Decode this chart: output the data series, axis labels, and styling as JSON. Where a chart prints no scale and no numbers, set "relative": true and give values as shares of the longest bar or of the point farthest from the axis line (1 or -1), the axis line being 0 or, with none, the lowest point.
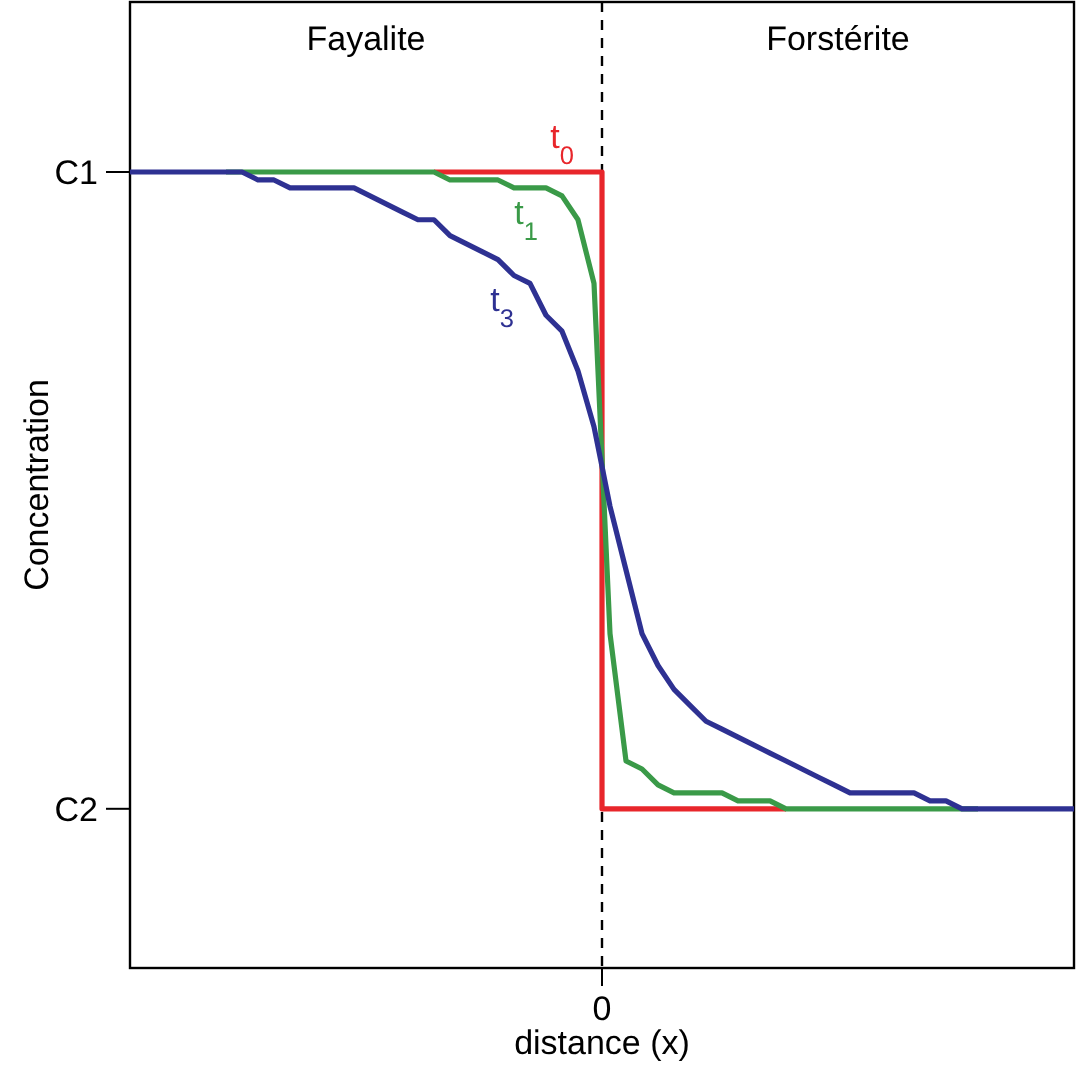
{
  "chart_data": {
    "type": "line",
    "xlabel": "distance (x)",
    "ylabel": "Concentration",
    "relative": true,
    "marker": "none",
    "line_style": "solid",
    "categories": [
      null,
      null,
      null,
      null,
      null,
      null,
      null,
      null,
      null,
      null,
      null,
      null,
      null,
      null,
      null,
      null,
      null,
      null,
      null,
      null,
      null,
      null,
      null,
      null,
      null,
      null,
      null,
      null,
      null,
      null,
      null,
      null,
      null,
      null,
      null,
      null,
      null,
      null,
      null,
      null,
      null,
      null,
      null,
      null,
      null,
      null,
      null,
      null,
      null,
      null,
      null,
      null,
      null,
      null,
      null,
      null,
      null,
      null,
      null,
      null
    ],
    "annotations": [
      "Fayalite",
      "Forstérite",
      "C1",
      "C2",
      "0"
    ],
    "ref_lines": [
      {
        "axis": "x",
        "color": "#000000",
        "line_style": "dashed"
      }
    ],
    "series": [
      {
        "name": "t$_{0}$",
        "type": "step",
        "color": "#e8262b",
        "values": [
          null,
          null,
          null,
          null,
          null,
          null,
          null,
          null,
          null,
          null,
          null,
          null,
          null,
          null,
          null,
          null,
          null,
          null,
          null,
          1,
          1,
          1,
          1,
          1,
          1,
          1,
          1,
          1,
          1,
          1,
          0.2,
          0.2,
          0.2,
          0.2,
          0.2,
          0.2,
          0.2,
          0.2,
          0.2,
          0.2,
          0.2,
          0.2,
          null,
          null,
          null,
          null,
          null,
          null,
          null,
          null,
          null,
          null,
          null,
          null,
          null,
          null,
          null,
          null,
          null,
          null
        ]
      },
      {
        "name": "t$_{1}$",
        "color": "#3a9a48",
        "values": [
          null,
          null,
          null,
          null,
          null,
          null,
          1,
          1,
          1,
          1,
          1,
          1,
          1,
          1,
          1,
          1,
          1,
          1,
          1,
          1,
          0.99,
          0.99,
          0.99,
          0.99,
          0.98,
          0.98,
          0.98,
          0.97,
          0.94,
          0.86,
          0.42,
          0.26,
          0.25,
          0.23,
          0.22,
          0.22,
          0.22,
          0.22,
          0.21,
          0.21,
          0.21,
          0.2,
          0.2,
          0.2,
          0.2,
          0.2,
          0.2,
          0.2,
          0.2,
          0.2,
          0.2,
          0.2,
          0.2,
          0.2,
          null,
          null,
          null,
          null,
          null,
          null
        ]
      },
      {
        "name": "t$_{3}$",
        "color": "#2e3192",
        "values": [
          1,
          1,
          1,
          1,
          1,
          1,
          1,
          1,
          0.99,
          0.99,
          0.98,
          0.98,
          0.98,
          0.98,
          0.98,
          0.97,
          0.96,
          0.95,
          0.94,
          0.94,
          0.92,
          0.91,
          0.9,
          0.89,
          0.87,
          0.86,
          0.82,
          0.8,
          0.75,
          0.68,
          0.58,
          0.5,
          0.42,
          0.38,
          0.35,
          0.33,
          0.31,
          0.3,
          0.29,
          0.28,
          0.27,
          0.26,
          0.25,
          0.24,
          0.23,
          0.22,
          0.22,
          0.22,
          0.22,
          0.22,
          0.21,
          0.21,
          0.2,
          0.2,
          0.2,
          0.2,
          0.2,
          0.2,
          0.2,
          0.2
        ]
      }
    ]
  }
}
